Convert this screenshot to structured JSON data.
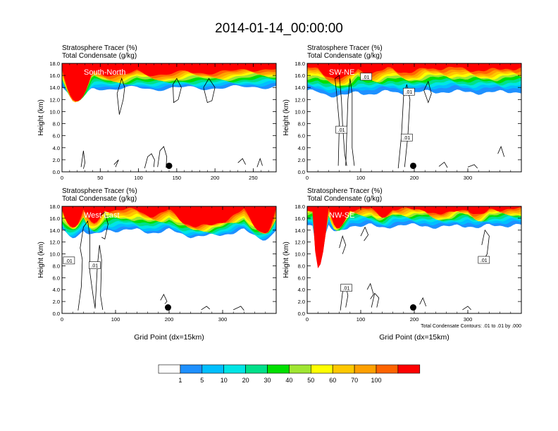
{
  "title": "2014-01-14_00:00:00",
  "colors": {
    "fill": [
      "#ffffff",
      "#1e90ff",
      "#00bfff",
      "#00e5e5",
      "#00e08a",
      "#00e000",
      "#a0e632",
      "#ffff00",
      "#ffc800",
      "#ffa000",
      "#ff6400",
      "#ff0000"
    ]
  },
  "colorbar": {
    "labels": [
      "1",
      "5",
      "10",
      "20",
      "30",
      "40",
      "50",
      "60",
      "70",
      "100"
    ]
  },
  "chart_data": [
    {
      "type": "contour",
      "panel": "top-left",
      "label": "South-North",
      "title_lines": [
        "Stratosphere Tracer   (%)",
        "Total Condensate   (g/kg)"
      ],
      "ylabel": "Height (km)",
      "xlabel": "",
      "xlim": [
        0,
        280
      ],
      "ylim": [
        0,
        18
      ],
      "xticks": [
        0,
        50,
        100,
        150,
        200,
        250
      ],
      "yticks": [
        "0.0",
        "2.0",
        "4.0",
        "6.0",
        "8.0",
        "10.0",
        "12.0",
        "14.0",
        "16.0",
        "18.0"
      ],
      "marker": {
        "x": 140,
        "y": 1.0
      },
      "contour_labels": [],
      "base_levels": [
        {
          "color": "#ff0000",
          "h": 17.0
        },
        {
          "color": "#ff6400",
          "h": 16.7
        },
        {
          "color": "#ffa000",
          "h": 16.4
        },
        {
          "color": "#ffc800",
          "h": 16.2
        },
        {
          "color": "#ffff00",
          "h": 16.0
        },
        {
          "color": "#a0e632",
          "h": 15.7
        },
        {
          "color": "#00e000",
          "h": 15.4
        },
        {
          "color": "#00e08a",
          "h": 15.1
        },
        {
          "color": "#00e5e5",
          "h": 14.8
        },
        {
          "color": "#00bfff",
          "h": 14.5
        },
        {
          "color": "#1e90ff",
          "h": 14.1
        }
      ]
    },
    {
      "type": "contour",
      "panel": "top-right",
      "label": "SW-NE",
      "title_lines": [
        "Stratosphere Tracer   (%)",
        "Total Condensate   (g/kg)"
      ],
      "ylabel": "Height (km)",
      "xlabel": "",
      "xlim": [
        0,
        400
      ],
      "ylim": [
        0,
        18
      ],
      "xticks": [
        0,
        100,
        200,
        300
      ],
      "yticks": [
        "0.0",
        "2.0",
        "4.0",
        "6.0",
        "8.0",
        "10.0",
        "12.0",
        "14.0",
        "16.0",
        "18.0"
      ],
      "marker": {
        "x": 198,
        "y": 1.0
      },
      "contour_labels": [
        {
          "x": 110,
          "y": 15.8,
          "text": ".01"
        },
        {
          "x": 190,
          "y": 13.3,
          "text": ".01"
        },
        {
          "x": 64,
          "y": 7.0,
          "text": ".01"
        },
        {
          "x": 186,
          "y": 5.7,
          "text": ".01"
        }
      ],
      "base_levels": [
        {
          "color": "#ff0000",
          "h": 17.2
        },
        {
          "color": "#ff6400",
          "h": 16.8
        },
        {
          "color": "#ffa000",
          "h": 16.5
        },
        {
          "color": "#ffc800",
          "h": 16.2
        },
        {
          "color": "#ffff00",
          "h": 15.9
        },
        {
          "color": "#a0e632",
          "h": 15.6
        },
        {
          "color": "#00e000",
          "h": 15.2
        },
        {
          "color": "#00e08a",
          "h": 14.8
        },
        {
          "color": "#00e5e5",
          "h": 14.4
        },
        {
          "color": "#00bfff",
          "h": 14.0
        },
        {
          "color": "#1e90ff",
          "h": 13.3
        }
      ]
    },
    {
      "type": "contour",
      "panel": "bottom-left",
      "label": "West-East",
      "title_lines": [
        "Stratosphere Tracer   (%)",
        "Total Condensate   (g/kg)"
      ],
      "ylabel": "Height (km)",
      "xlabel": "Grid Point (dx=15km)",
      "xlim": [
        0,
        400
      ],
      "ylim": [
        0,
        18
      ],
      "xticks": [
        0,
        100,
        200,
        300
      ],
      "yticks": [
        "0.0",
        "2.0",
        "4.0",
        "6.0",
        "8.0",
        "10.0",
        "12.0",
        "14.0",
        "16.0",
        "18.0"
      ],
      "marker": {
        "x": 198,
        "y": 1.0
      },
      "contour_labels": [
        {
          "x": 13,
          "y": 8.9,
          "text": ".01"
        },
        {
          "x": 61,
          "y": 8.1,
          "text": ".01"
        }
      ],
      "base_levels": [
        {
          "color": "#ff0000",
          "h": 17.4
        },
        {
          "color": "#ff6400",
          "h": 17.1
        },
        {
          "color": "#ffa000",
          "h": 16.8
        },
        {
          "color": "#ffc800",
          "h": 16.5
        },
        {
          "color": "#ffff00",
          "h": 16.2
        },
        {
          "color": "#a0e632",
          "h": 15.9
        },
        {
          "color": "#00e000",
          "h": 15.6
        },
        {
          "color": "#00e08a",
          "h": 15.2
        },
        {
          "color": "#00e5e5",
          "h": 14.8
        },
        {
          "color": "#00bfff",
          "h": 14.4
        },
        {
          "color": "#1e90ff",
          "h": 14.0
        }
      ]
    },
    {
      "type": "contour",
      "panel": "bottom-right",
      "label": "NW-SE",
      "title_lines": [
        "Stratosphere Tracer   (%)",
        "Total Condensate   (g/kg)"
      ],
      "ylabel": "Height (km)",
      "xlabel": "Grid Point (dx=15km)",
      "footnote": "Total Condensate Contours: .01 to .01 by .000",
      "xlim": [
        0,
        400
      ],
      "ylim": [
        0,
        18
      ],
      "xticks": [
        0,
        100,
        200,
        300
      ],
      "yticks": [
        "0.0",
        "2.0",
        "4.0",
        "6.0",
        "8.0",
        "10.0",
        "12.0",
        "14.0",
        "16.0",
        "18.0"
      ],
      "marker": {
        "x": 198,
        "y": 1.0
      },
      "contour_labels": [
        {
          "x": 330,
          "y": 9.0,
          "text": ".01"
        },
        {
          "x": 73,
          "y": 4.3,
          "text": ".01"
        }
      ],
      "base_levels": [
        {
          "color": "#ff0000",
          "h": 17.5
        },
        {
          "color": "#ff6400",
          "h": 17.3
        },
        {
          "color": "#ffa000",
          "h": 17.1
        },
        {
          "color": "#ffc800",
          "h": 16.9
        },
        {
          "color": "#ffff00",
          "h": 16.7
        },
        {
          "color": "#a0e632",
          "h": 16.5
        },
        {
          "color": "#00e000",
          "h": 16.3
        },
        {
          "color": "#00e08a",
          "h": 16.0
        },
        {
          "color": "#00e5e5",
          "h": 15.7
        },
        {
          "color": "#00bfff",
          "h": 15.3
        },
        {
          "color": "#1e90ff",
          "h": 14.8
        }
      ]
    }
  ]
}
